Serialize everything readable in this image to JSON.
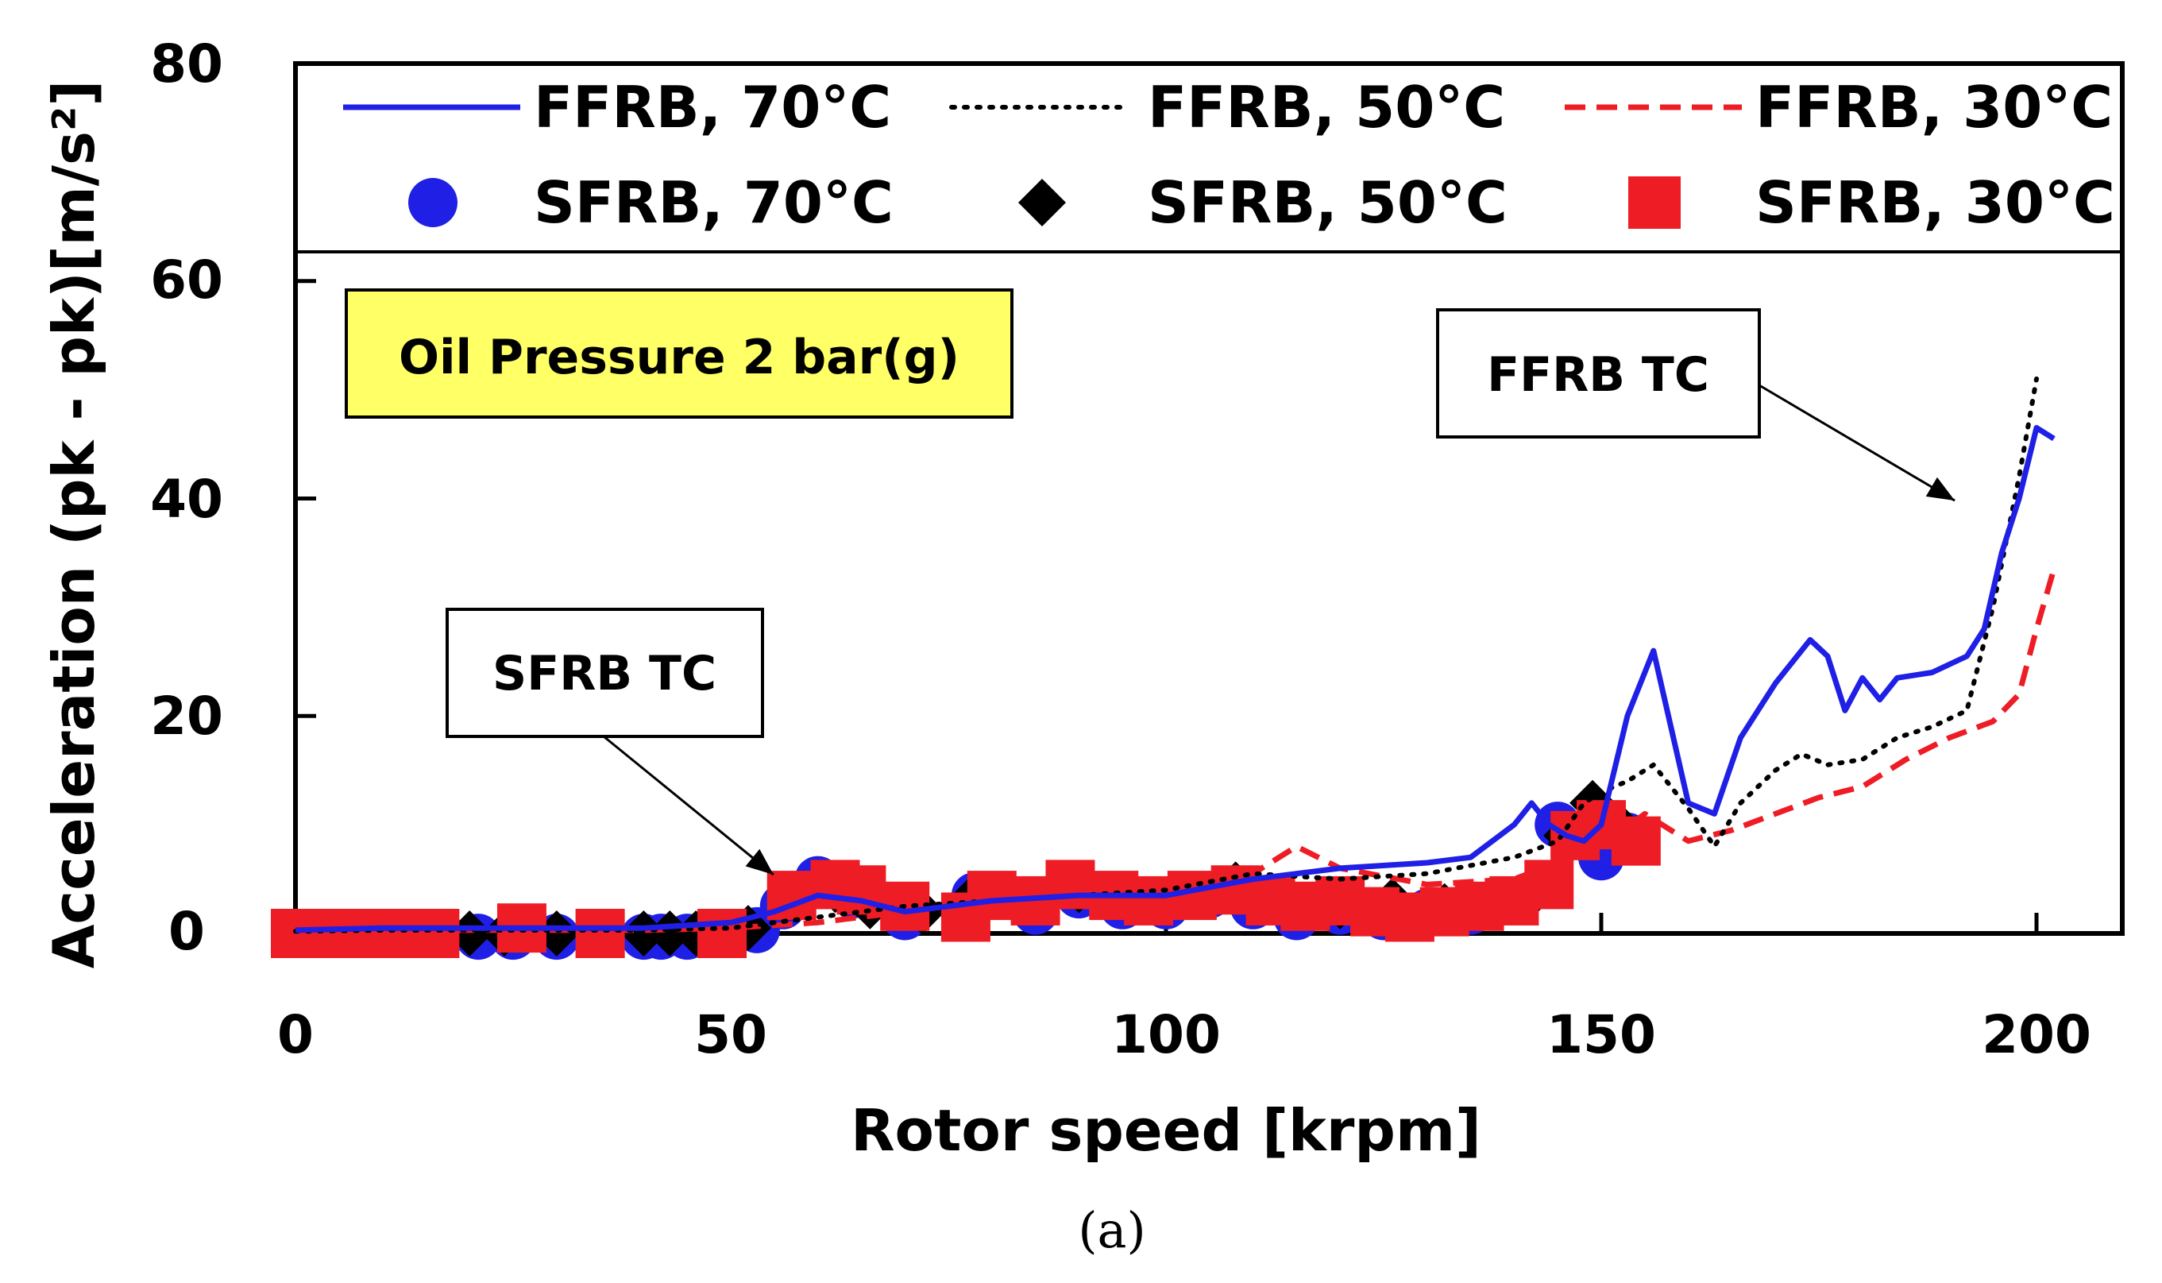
{
  "chart_data": {
    "type": "line",
    "title": "",
    "caption": "(a)",
    "xlabel": "Rotor speed  [krpm]",
    "ylabel": "Acceleration (pk - pk)[m/s²]",
    "xlim": [
      0,
      210
    ],
    "ylim": [
      0,
      80
    ],
    "xticks": [
      0,
      50,
      100,
      150,
      200
    ],
    "yticks": [
      0,
      20,
      40,
      60,
      80
    ],
    "tick_labels": {
      "x": [
        "0",
        "50",
        "100",
        "150",
        "200"
      ],
      "y": [
        "0",
        "20",
        "40",
        "60",
        "80"
      ]
    },
    "grid": false,
    "legend_position": "top (inside plot frame)",
    "series": [
      {
        "name": "FFRB, 70°C",
        "style": "solid-line",
        "color": "#1f1fe6",
        "x": [
          0,
          10,
          20,
          30,
          40,
          50,
          55,
          60,
          65,
          70,
          80,
          90,
          100,
          110,
          115,
          120,
          130,
          135,
          140,
          142,
          144,
          146,
          148,
          150,
          153,
          156,
          160,
          163,
          166,
          170,
          174,
          176,
          178,
          180,
          182,
          184,
          188,
          192,
          194,
          196,
          198,
          200,
          202
        ],
        "y": [
          0.3,
          0.5,
          0.5,
          0.5,
          0.5,
          1.0,
          2.0,
          3.5,
          3.0,
          2.0,
          3.0,
          3.5,
          3.5,
          5.0,
          5.5,
          6.0,
          6.5,
          7.0,
          10.0,
          12.0,
          10.0,
          9.0,
          8.5,
          10.0,
          20.0,
          26.0,
          12.0,
          11.0,
          18.0,
          23.0,
          27.0,
          25.5,
          20.5,
          23.5,
          21.5,
          23.5,
          24.0,
          25.5,
          28.0,
          35.0,
          40.0,
          46.5,
          45.5
        ]
      },
      {
        "name": "FFRB, 50°C",
        "style": "dotted-line",
        "color": "#000000",
        "x": [
          0,
          10,
          20,
          30,
          40,
          50,
          60,
          70,
          80,
          90,
          100,
          110,
          120,
          130,
          140,
          145,
          148,
          150,
          153,
          156,
          160,
          163,
          166,
          170,
          173,
          176,
          180,
          184,
          188,
          192,
          195,
          198,
          200
        ],
        "y": [
          0.2,
          0.3,
          0.3,
          0.3,
          0.3,
          0.5,
          1.5,
          2.5,
          3.0,
          3.5,
          4.0,
          5.5,
          5.0,
          5.5,
          7.0,
          8.5,
          12.0,
          13.0,
          14.0,
          15.5,
          11.5,
          8.0,
          12.0,
          15.0,
          16.5,
          15.5,
          16.0,
          18.0,
          19.0,
          20.5,
          30.0,
          42.0,
          51.0
        ]
      },
      {
        "name": "FFRB, 30°C",
        "style": "dashed-line",
        "color": "#ee1c24",
        "x": [
          0,
          10,
          20,
          30,
          40,
          50,
          60,
          70,
          80,
          90,
          100,
          110,
          115,
          120,
          130,
          140,
          145,
          150,
          155,
          160,
          165,
          170,
          175,
          180,
          185,
          190,
          195,
          198,
          200,
          202
        ],
        "y": [
          0.2,
          0.3,
          0.3,
          0.3,
          0.3,
          0.5,
          1.0,
          2.0,
          3.0,
          3.5,
          4.0,
          5.5,
          8.0,
          6.0,
          4.5,
          5.0,
          6.5,
          8.0,
          11.0,
          8.5,
          9.5,
          11.0,
          12.5,
          13.5,
          16.0,
          18.0,
          19.5,
          22.0,
          28.0,
          33.5
        ]
      },
      {
        "name": "SFRB, 70°C",
        "style": "circle-marker",
        "color": "#1f1fe6",
        "x": [
          0,
          2,
          4,
          6,
          8,
          10,
          12,
          14,
          16,
          21,
          25,
          30,
          40,
          42,
          45,
          53,
          56,
          60,
          64,
          70,
          78,
          85,
          90,
          95,
          100,
          105,
          110,
          115,
          120,
          125,
          130,
          135,
          140,
          145,
          147,
          150,
          153
        ],
        "y": [
          0,
          0,
          0,
          0,
          0,
          0,
          0,
          0,
          0,
          -0.3,
          -0.3,
          -0.3,
          -0.3,
          -0.3,
          -0.3,
          0.3,
          2.5,
          5.0,
          3.5,
          1.5,
          3.5,
          2.0,
          3.5,
          2.5,
          2.5,
          3.5,
          2.5,
          1.5,
          2.0,
          1.5,
          2.0,
          2.0,
          3.0,
          10.0,
          9.0,
          7.0,
          9.0
        ]
      },
      {
        "name": "SFRB, 50°C",
        "style": "diamond-marker",
        "color": "#000000",
        "x": [
          0,
          2,
          4,
          6,
          8,
          10,
          12,
          14,
          16,
          20,
          24,
          30,
          40,
          43,
          46,
          52,
          58,
          62,
          66,
          72,
          78,
          84,
          90,
          96,
          102,
          108,
          114,
          120,
          126,
          132,
          138,
          142,
          146,
          149,
          152
        ],
        "y": [
          0,
          0,
          0,
          0,
          0,
          0,
          0,
          0,
          0,
          0,
          0,
          0,
          0,
          0,
          0,
          0.5,
          3.5,
          4.0,
          2.5,
          2.0,
          3.5,
          3.0,
          4.0,
          3.5,
          3.5,
          4.5,
          3.0,
          2.5,
          3.0,
          2.5,
          3.0,
          3.5,
          9.0,
          12.0,
          10.0
        ]
      },
      {
        "name": "SFRB, 30°C",
        "style": "square-marker",
        "color": "#ee1c24",
        "x": [
          0,
          2,
          4,
          6,
          8,
          10,
          12,
          14,
          16,
          26,
          35,
          49,
          57,
          62,
          65,
          70,
          77,
          80,
          85,
          89,
          94,
          98,
          103,
          108,
          112,
          116,
          120,
          124,
          128,
          132,
          136,
          140,
          144,
          147,
          150,
          154
        ],
        "y": [
          0,
          0,
          0,
          0,
          0,
          0,
          0,
          0,
          0,
          0.5,
          0,
          0,
          3.5,
          4.5,
          4.0,
          2.5,
          1.5,
          3.5,
          3.0,
          4.5,
          3.5,
          3.0,
          3.5,
          4.0,
          3.0,
          2.5,
          3.0,
          2.0,
          1.5,
          2.0,
          2.5,
          3.0,
          4.5,
          9.0,
          10.0,
          8.5
        ]
      }
    ],
    "annotations": [
      {
        "id": "oil",
        "text": "Oil Pressure 2 bar(g)",
        "fill": "#ffff66"
      },
      {
        "id": "ffrb",
        "text": "FFRB TC",
        "arrow_to": [
          197,
          42
        ]
      },
      {
        "id": "sfrb",
        "text": "SFRB TC",
        "arrow_to": [
          54,
          6.5
        ]
      }
    ]
  }
}
